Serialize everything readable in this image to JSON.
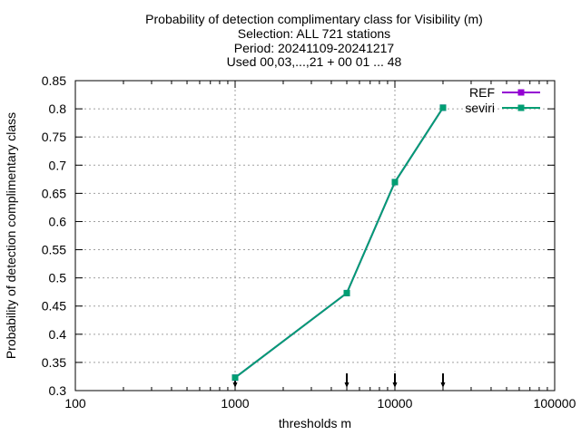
{
  "chart_data": {
    "type": "line",
    "title": [
      "Probability of detection complimentary class  for Visibility (m)",
      "Selection: ALL    721 stations",
      "Period: 20241109-20241217",
      "Used 00,03,...,21 + 00 01 ... 48"
    ],
    "xlabel": "thresholds m",
    "ylabel": "Probability of detection complimentary class",
    "x_scale": "log",
    "xlim": [
      100,
      100000
    ],
    "ylim": [
      0.3,
      0.85
    ],
    "x_ticks": [
      100,
      1000,
      10000,
      100000
    ],
    "x_tick_labels": [
      "100",
      "1000",
      "10000",
      "100000"
    ],
    "y_ticks": [
      0.3,
      0.35,
      0.4,
      0.45,
      0.5,
      0.55,
      0.6,
      0.65,
      0.7,
      0.75,
      0.8,
      0.85
    ],
    "y_tick_labels": [
      "0.3",
      "0.35",
      "0.4",
      "0.45",
      "0.5",
      "0.55",
      "0.6",
      "0.65",
      "0.7",
      "0.75",
      "0.8",
      "0.85"
    ],
    "grid": true,
    "legend_position": "top-right",
    "x": [
      1000,
      5000,
      10000,
      20000
    ],
    "series": [
      {
        "name": "REF",
        "color": "#9400d3",
        "values": [
          0.323,
          0.473,
          0.67,
          0.802
        ]
      },
      {
        "name": "seviri",
        "color": "#009e73",
        "values": [
          0.323,
          0.473,
          0.67,
          0.802
        ]
      }
    ],
    "marker_arrows_x": [
      1000,
      5000,
      10000,
      20000
    ]
  }
}
